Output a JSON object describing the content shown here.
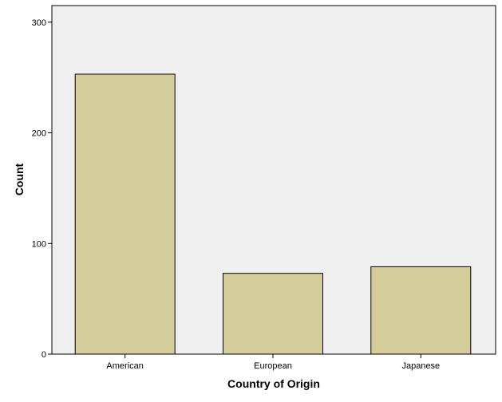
{
  "chart_data": {
    "type": "bar",
    "title": "",
    "xlabel": "Country of Origin",
    "ylabel": "Count",
    "categories": [
      "American",
      "European",
      "Japanese"
    ],
    "values": [
      253,
      73,
      79
    ],
    "ylim": [
      0,
      315
    ],
    "yticks": [
      0,
      100,
      200,
      300
    ],
    "grid": false,
    "colors": {
      "bar_fill": "#d3ce99",
      "bar_stroke": "#000000",
      "plot_background": "#f0f0f0",
      "page_background": "#ffffff"
    }
  }
}
